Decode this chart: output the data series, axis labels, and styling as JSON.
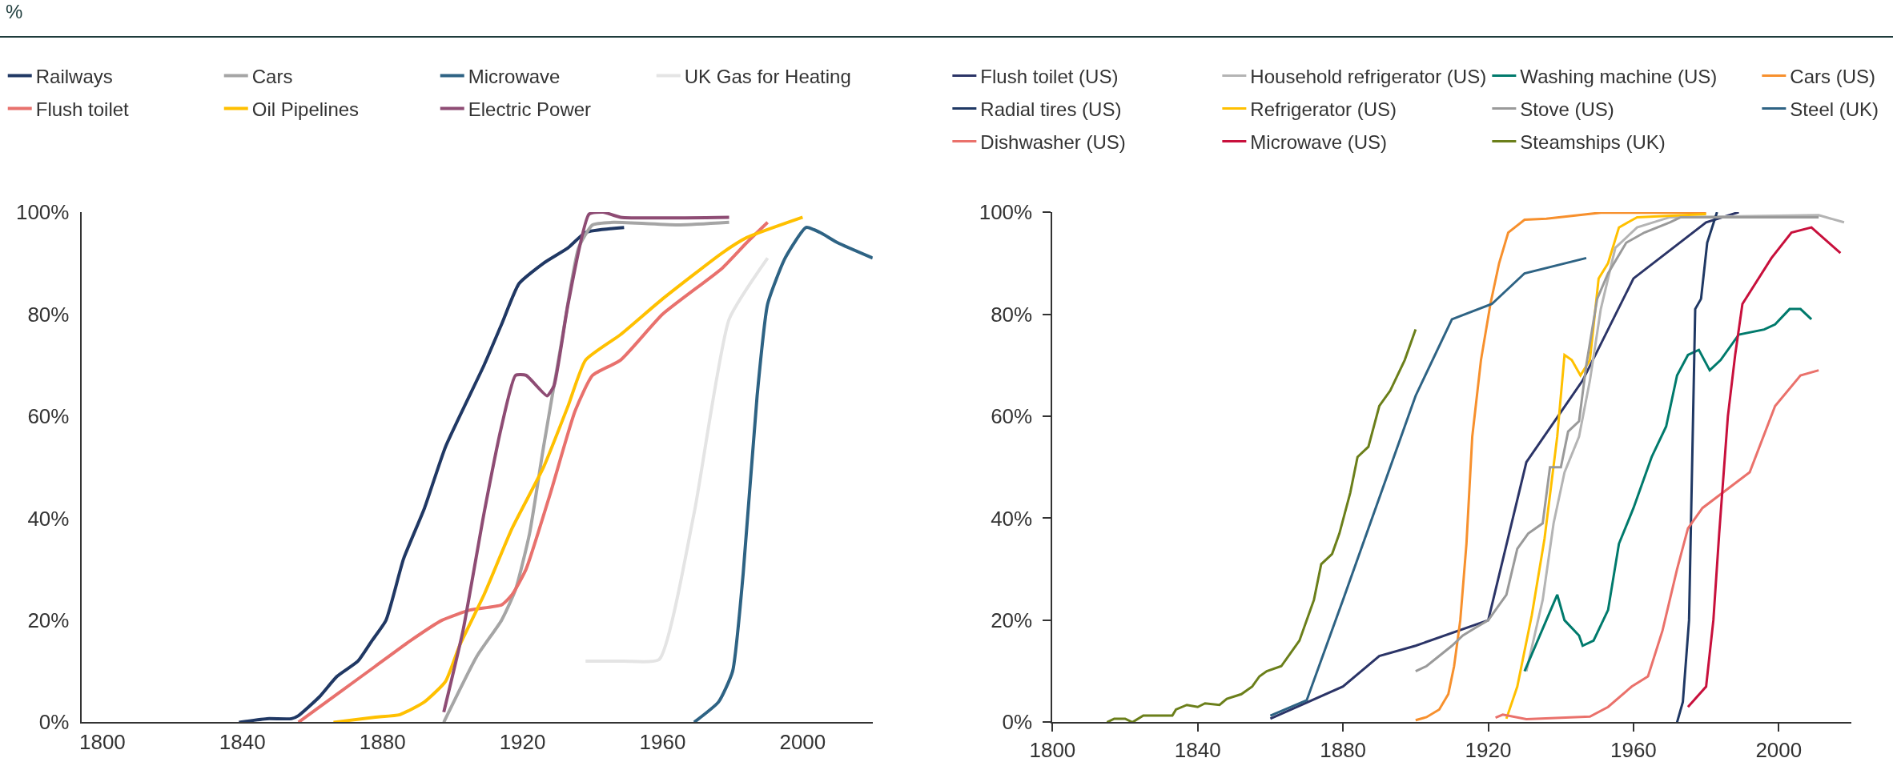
{
  "chart_data": [
    {
      "type": "line",
      "title": "%",
      "legend": "top",
      "xlim": [
        1794,
        2020
      ],
      "xticks": [
        1800,
        1840,
        1880,
        1920,
        1960,
        2000
      ],
      "ylim": [
        0,
        100
      ],
      "yticks": [
        {
          "value": 0,
          "label": "0%"
        },
        {
          "value": 20,
          "label": "20%"
        },
        {
          "value": 40,
          "label": "40%"
        },
        {
          "value": 60,
          "label": "60%"
        },
        {
          "value": 80,
          "label": "80%"
        },
        {
          "value": 100,
          "label": "100%"
        }
      ],
      "series": [
        {
          "name": "Railways",
          "color": "#203864",
          "x": [
            1839,
            1847,
            1854,
            1856,
            1862,
            1867,
            1873,
            1877,
            1881,
            1886,
            1892,
            1898,
            1909,
            1914,
            1919,
            1926,
            1933,
            1938,
            1949
          ],
          "values": [
            0,
            0.7,
            0.7,
            1.3,
            5,
            9,
            12,
            16,
            20,
            32,
            42,
            54,
            70,
            78,
            86,
            90,
            93,
            96,
            97
          ]
        },
        {
          "name": "Cars",
          "color": "#a5a5a5",
          "x": [
            1897.5,
            1907,
            1914,
            1918,
            1922,
            1926,
            1931,
            1936,
            1940,
            1946,
            1965,
            1979
          ],
          "values": [
            0,
            13,
            20,
            26,
            37,
            54,
            74,
            93,
            97.5,
            98,
            97.5,
            98
          ]
        },
        {
          "name": "Microwave",
          "color": "#2e6384",
          "x": [
            1969,
            1976,
            1980,
            1983,
            1987,
            1990,
            1995,
            2001,
            2005,
            2010,
            2020
          ],
          "values": [
            0,
            4,
            10,
            29,
            64,
            82,
            91,
            97,
            96,
            94,
            91
          ]
        },
        {
          "name": "UK Gas for Heating",
          "color": "#e4e4e4",
          "x": [
            1938,
            1949,
            1959,
            1969,
            1979,
            1990
          ],
          "values": [
            12,
            12,
            12.3,
            41,
            79,
            91
          ]
        },
        {
          "name": "Flush toilet",
          "color": "#e8716d",
          "x": [
            1856,
            1868,
            1878,
            1888,
            1897,
            1905,
            1914,
            1917,
            1921,
            1928,
            1935,
            1940,
            1948,
            1960,
            1977,
            1984,
            1990
          ],
          "values": [
            0,
            6,
            11,
            16,
            20,
            22,
            23,
            25,
            30,
            45,
            61,
            68,
            71,
            80,
            89,
            94,
            98
          ]
        },
        {
          "name": "Oil Pipelines",
          "color": "#ffc000",
          "x": [
            1866,
            1878,
            1885,
            1892,
            1898,
            1902,
            1909,
            1917,
            1926,
            1933,
            1938,
            1948,
            1960,
            1977,
            1984,
            2000
          ],
          "values": [
            0,
            1,
            1.5,
            4,
            8,
            15,
            25,
            38,
            50,
            62,
            71,
            76,
            83,
            92,
            95,
            99
          ]
        },
        {
          "name": "Electric Power",
          "color": "#8e4c74",
          "x": [
            1897.5,
            1903,
            1909,
            1914,
            1918,
            1921,
            1927,
            1929,
            1933,
            1939,
            1943,
            1948,
            1979
          ],
          "values": [
            2,
            18,
            41,
            58,
            68,
            68,
            64,
            66,
            82,
            99.6,
            100,
            99,
            99
          ]
        }
      ]
    },
    {
      "type": "line",
      "legend": "top",
      "xlim": [
        1800,
        2020
      ],
      "xticks": [
        1800,
        1840,
        1880,
        1920,
        1960,
        2000
      ],
      "ylim": [
        0,
        100
      ],
      "yticks": [
        {
          "value": 0,
          "label": "0%"
        },
        {
          "value": 20,
          "label": "20%"
        },
        {
          "value": 40,
          "label": "40%"
        },
        {
          "value": 60,
          "label": "60%"
        },
        {
          "value": 80,
          "label": "80%"
        },
        {
          "value": 100,
          "label": "100%"
        }
      ],
      "series": [
        {
          "name": "Flush toilet (US)",
          "color": "#2b3467",
          "x": [
            1860,
            1880,
            1890,
            1900,
            1920,
            1930.5,
            1946,
            1960,
            1980,
            1989
          ],
          "values": [
            0.7,
            7,
            13,
            15,
            20,
            51,
            67,
            87,
            98,
            100
          ]
        },
        {
          "name": "Household refrigerator (US)",
          "color": "#b4b4b4",
          "x": [
            1930.5,
            1935,
            1938,
            1941,
            1945,
            1948,
            1951,
            1955,
            1961,
            1970,
            2011,
            2018
          ],
          "values": [
            10,
            24,
            39,
            49,
            56,
            67,
            81,
            93,
            97,
            99,
            99.4,
            98
          ]
        },
        {
          "name": "Washing machine (US)",
          "color": "#007a6c",
          "x": [
            1930,
            1933,
            1936,
            1939,
            1941,
            1945,
            1946,
            1949,
            1953,
            1956,
            1960,
            1965,
            1969,
            1972,
            1975,
            1978,
            1981,
            1984,
            1989,
            1996,
            1999,
            2003,
            2006,
            2009
          ],
          "values": [
            10,
            15,
            20,
            25,
            20,
            17,
            15,
            16,
            22,
            35,
            42,
            52,
            58,
            68,
            72,
            73,
            69,
            71,
            76,
            77,
            78,
            81,
            81,
            79
          ]
        },
        {
          "name": "Cars (US)",
          "color": "#f7902d",
          "x": [
            1900,
            1903,
            1906.5,
            1909,
            1910.6,
            1912.3,
            1914,
            1915.6,
            1918,
            1920.6,
            1923,
            1925.5,
            1930,
            1936,
            1951,
            1980
          ],
          "values": [
            0.4,
            1,
            2.5,
            5.5,
            11,
            20,
            35,
            56,
            71,
            82,
            90,
            96,
            98.5,
            98.7,
            99.9,
            99.9
          ]
        },
        {
          "name": "Radial tires (US)",
          "color": "#1f3864",
          "x": [
            1972,
            1973.6,
            1975.3,
            1977,
            1978.6,
            1980.3,
            1983
          ],
          "values": [
            0,
            4,
            20,
            81,
            83,
            94,
            100
          ]
        },
        {
          "name": "Refrigerator (US)",
          "color": "#ffc000",
          "x": [
            1925,
            1928,
            1932,
            1935.5,
            1939,
            1941,
            1943,
            1945.4,
            1948,
            1950.4,
            1953,
            1956,
            1961,
            1980
          ],
          "values": [
            0.7,
            7,
            21,
            36,
            56,
            72,
            71,
            68,
            71,
            87,
            90,
            97,
            99,
            99.6
          ]
        },
        {
          "name": "Stove (US)",
          "color": "#9a9a9a",
          "x": [
            1900,
            1903,
            1906.5,
            1910,
            1913,
            1916.4,
            1920,
            1925,
            1928,
            1931,
            1935,
            1937,
            1940,
            1942,
            1945,
            1947,
            1950,
            1953,
            1958,
            1963,
            1970,
            1973,
            2011
          ],
          "values": [
            10,
            11,
            13,
            15,
            17,
            18.5,
            20,
            25,
            34,
            37,
            39,
            50,
            50,
            57,
            59,
            70,
            83,
            88,
            94,
            96,
            98,
            99,
            99
          ]
        },
        {
          "name": "Steel (UK)",
          "color": "#2e6384",
          "x": [
            1860,
            1870,
            1880,
            1890,
            1900,
            1910,
            1921,
            1930,
            1947
          ],
          "values": [
            1.3,
            4.3,
            24,
            44,
            64,
            79,
            82,
            88,
            91
          ]
        },
        {
          "name": "Dishwasher (US)",
          "color": "#ea716b",
          "x": [
            1922,
            1924,
            1930.5,
            1948,
            1953,
            1959.5,
            1964,
            1968,
            1972,
            1975,
            1979,
            1992,
            1999,
            2006,
            2011
          ],
          "values": [
            0.9,
            1.5,
            0.6,
            1.1,
            3,
            7,
            9,
            18,
            30,
            38,
            42,
            49,
            62,
            68,
            69
          ]
        },
        {
          "name": "Microwave (US)",
          "color": "#c8103c",
          "x": [
            1975,
            1980,
            1982,
            1983.6,
            1986,
            1988,
            1990,
            1998,
            2003.5,
            2009,
            2017
          ],
          "values": [
            3,
            7,
            20,
            37,
            60,
            72,
            82,
            91,
            96,
            97,
            92
          ]
        },
        {
          "name": "Steamships (UK)",
          "color": "#6b7f1a",
          "x": [
            1815,
            1817,
            1820,
            1822,
            1825,
            1833,
            1834,
            1837,
            1840,
            1842,
            1846,
            1848,
            1852,
            1855,
            1857,
            1859,
            1863,
            1866,
            1868,
            1872,
            1874,
            1877,
            1879,
            1882,
            1884,
            1887,
            1890,
            1893,
            1897,
            1900
          ],
          "values": [
            0,
            0.7,
            0.7,
            0,
            1.3,
            1.3,
            2.5,
            3.4,
            3,
            3.7,
            3.4,
            4.6,
            5.5,
            7,
            9,
            10,
            11,
            14,
            16,
            24,
            31,
            33,
            37,
            45,
            52,
            54,
            62,
            65,
            71,
            77
          ]
        }
      ]
    }
  ]
}
